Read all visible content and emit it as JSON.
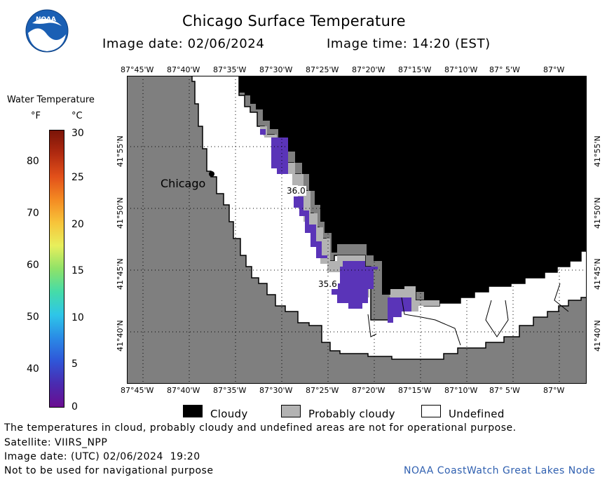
{
  "title": "Chicago Surface Temperature",
  "image_date_label": "Image date: 02/06/2024",
  "image_time_label": "Image time: 14:20 (EST)",
  "logo_text": "NOAA",
  "lon_ticks": [
    "87°45'W",
    "87°40'W",
    "87°35'W",
    "87°30'W",
    "87°25'W",
    "87°20'W",
    "87°15'W",
    "87°10'W",
    "87° 5'W",
    "87°W"
  ],
  "lat_ticks": [
    "41°55'N",
    "41°50'N",
    "41°45'N",
    "41°40'N"
  ],
  "colorbar": {
    "title": "Water Temperature",
    "unit_f": "°F",
    "unit_c": "°C",
    "f_ticks": [
      "80",
      "70",
      "60",
      "50",
      "40"
    ],
    "c_ticks": [
      "30",
      "25",
      "20",
      "15",
      "10",
      "5",
      "0"
    ],
    "gradient": [
      "#6a0d91",
      "#4a2bb0",
      "#2f56d8",
      "#2a8be6",
      "#2ec6e8",
      "#45dca8",
      "#8fe268",
      "#e8ef5c",
      "#f7c43a",
      "#f48a22",
      "#e2501a",
      "#b02a10",
      "#7a1408"
    ]
  },
  "map": {
    "city_label": "Chicago",
    "temp_labels": [
      "36.0",
      "35.6"
    ],
    "colors": {
      "land": "#7f7f7f",
      "cloudy": "#000000",
      "probably_cloudy": "#b3b3b3",
      "undefined": "#ffffff",
      "water_cold": "#5a34b8"
    }
  },
  "legend": {
    "cloudy": "Cloudy",
    "probably_cloudy": "Probably cloudy",
    "undefined": "Undefined"
  },
  "footer": {
    "disclaimer": "The temperatures in cloud, probably cloudy and undefined areas are not for operational purpose.",
    "satellite": "Satellite: VIIRS_NPP",
    "utc_date": "Image date: (UTC) 02/06/2024  19:20",
    "nav_warning": "Not to be used for navigational purpose",
    "credit": "NOAA CoastWatch Great Lakes Node",
    "credit_color": "#3060b0"
  }
}
